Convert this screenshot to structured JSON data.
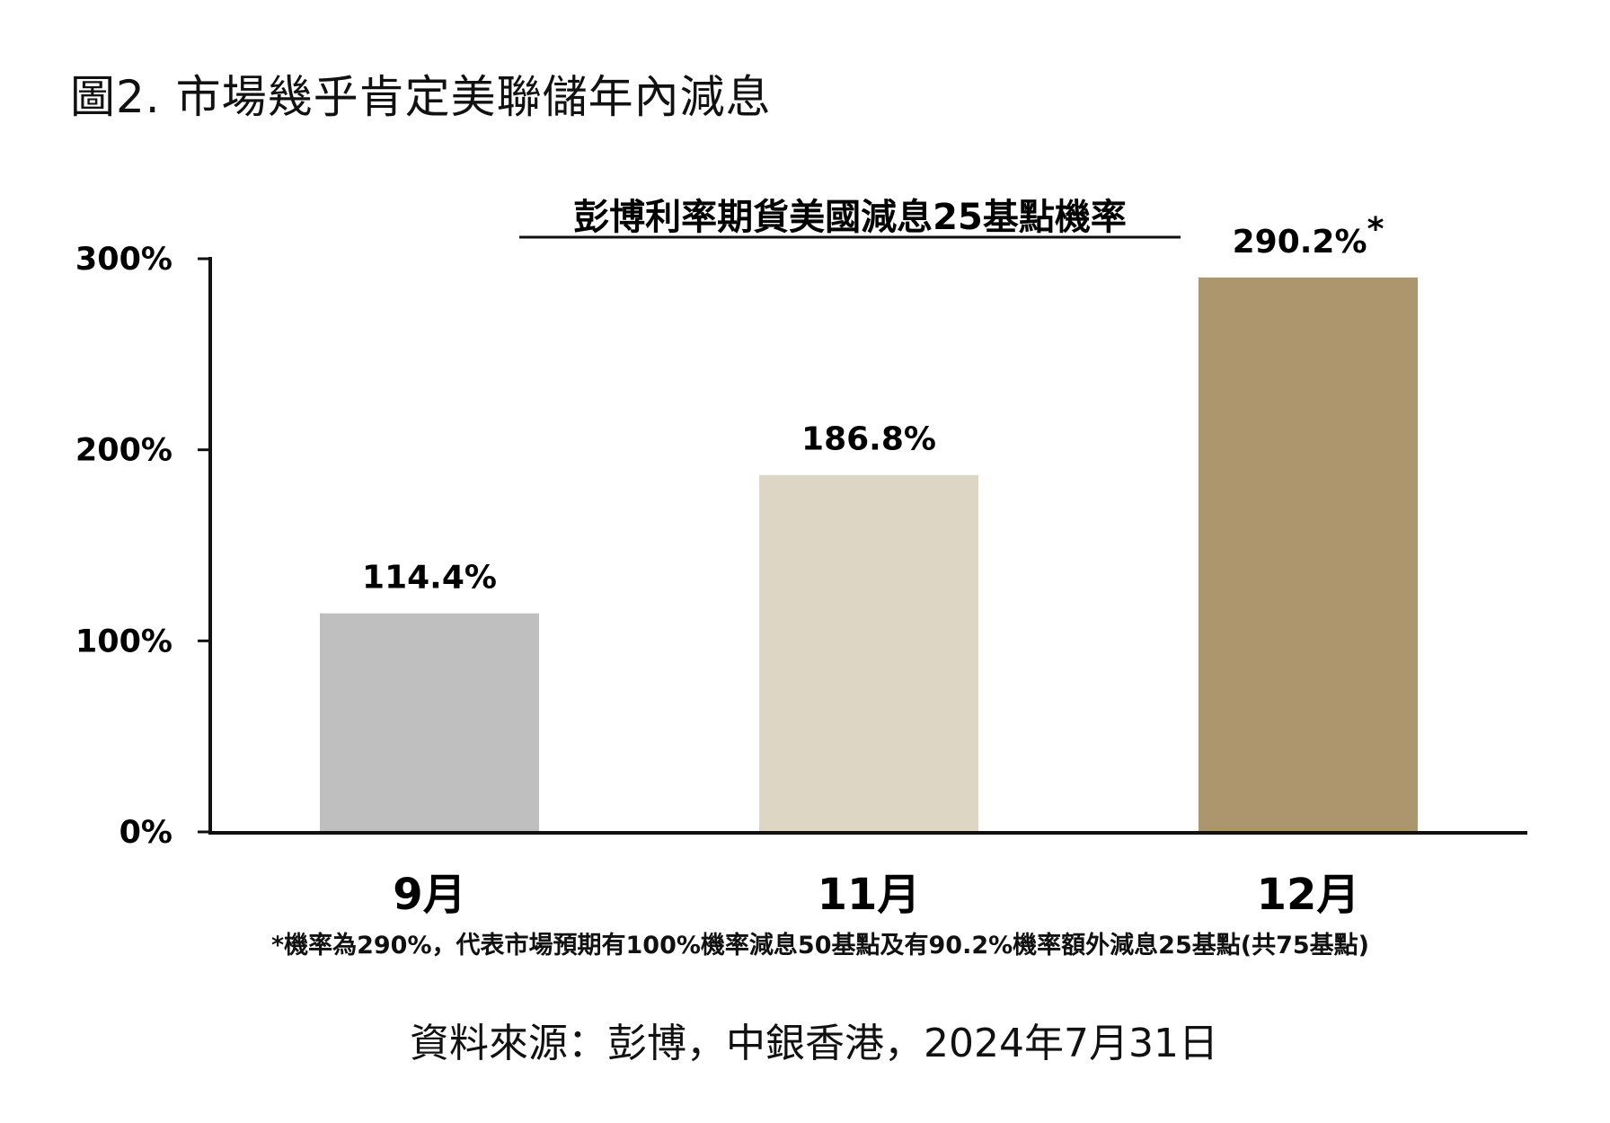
{
  "figure": {
    "title": "圖2. 市場幾乎肯定美聯儲年內減息",
    "footnote": "*機率為290%，代表市場預期有100%機率減息50基點及有90.2%機率額外減息25基點(共75基點)",
    "source": "資料來源：彭博，中銀香港，2024年7月31日"
  },
  "chart_data": {
    "type": "bar",
    "title": "彭博利率期貨美國減息25基點機率",
    "xlabel": "",
    "ylabel": "",
    "categories": [
      "9月",
      "11月",
      "12月"
    ],
    "values": [
      114.4,
      186.8,
      290.2
    ],
    "data_labels": [
      "114.4%",
      "186.8%",
      "290.2%"
    ],
    "label_markers": [
      "",
      "",
      "*"
    ],
    "colors": [
      "#bfbfbf",
      "#ddd6c5",
      "#ad966e"
    ],
    "ylim": [
      0,
      300
    ],
    "yticks": [
      0,
      100,
      200,
      300
    ],
    "ytick_labels": [
      "0%",
      "100%",
      "200%",
      "300%"
    ],
    "grid": false,
    "legend": "none"
  }
}
